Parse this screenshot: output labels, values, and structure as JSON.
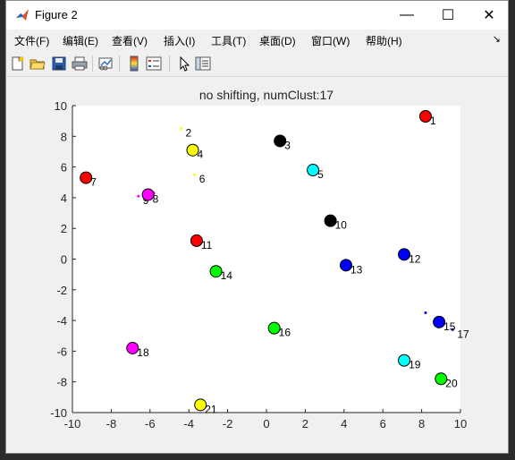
{
  "window": {
    "title": "Figure 2",
    "controls": {
      "minimize": "—",
      "maximize": "☐",
      "close": "✕"
    }
  },
  "menu": [
    "文件(F)",
    "编辑(E)",
    "查看(V)",
    "插入(I)",
    "工具(T)",
    "桌面(D)",
    "窗口(W)",
    "帮助(H)"
  ],
  "toolbar": [
    "new-figure",
    "open-file",
    "save",
    "print",
    "link-plot",
    "insert-colorbar",
    "insert-legend",
    "edit-plot",
    "property-inspector"
  ],
  "chart_data": {
    "type": "scatter",
    "title": "no shifting, numClust:17",
    "xlim": [
      -10,
      10
    ],
    "ylim": [
      -10,
      10
    ],
    "xticks": [
      -10,
      -8,
      -6,
      -4,
      -2,
      0,
      2,
      4,
      6,
      8,
      10
    ],
    "yticks": [
      -10,
      -8,
      -6,
      -4,
      -2,
      0,
      2,
      4,
      6,
      8,
      10
    ],
    "xtick_labels": [
      "-10",
      "-8",
      "-6",
      "-4",
      "-2",
      "0",
      "2",
      "4",
      "6",
      "8",
      "10"
    ],
    "ytick_labels": [
      "-10",
      "-8",
      "-6",
      "-4",
      "-2",
      "0",
      "2",
      "4",
      "6",
      "8",
      "10"
    ],
    "grid": false,
    "centers": [
      {
        "x": 8.2,
        "y": 9.3,
        "label": "1",
        "color": "#ff0000"
      },
      {
        "x": -3.8,
        "y": 7.1,
        "label": "4",
        "color": "#ffff00"
      },
      {
        "x": 0.7,
        "y": 7.7,
        "label": "3",
        "color": "#000000"
      },
      {
        "x": 2.4,
        "y": 5.8,
        "label": "5",
        "color": "#00ffff"
      },
      {
        "x": -9.3,
        "y": 5.3,
        "label": "7",
        "color": "#ff0000"
      },
      {
        "x": -6.1,
        "y": 4.2,
        "label": "8",
        "color": "#ff00ff"
      },
      {
        "x": 3.3,
        "y": 2.5,
        "label": "10",
        "color": "#000000"
      },
      {
        "x": 7.1,
        "y": 0.3,
        "label": "12",
        "color": "#0000ff"
      },
      {
        "x": -3.6,
        "y": 1.2,
        "label": "11",
        "color": "#ff0000"
      },
      {
        "x": 4.1,
        "y": -0.4,
        "label": "13",
        "color": "#0000ff"
      },
      {
        "x": -2.6,
        "y": -0.8,
        "label": "14",
        "color": "#00ff00"
      },
      {
        "x": 0.4,
        "y": -4.5,
        "label": "16",
        "color": "#00ff00"
      },
      {
        "x": 8.9,
        "y": -4.1,
        "label": "15",
        "color": "#0000ff"
      },
      {
        "x": -6.9,
        "y": -5.8,
        "label": "18",
        "color": "#ff00ff"
      },
      {
        "x": 7.1,
        "y": -6.6,
        "label": "19",
        "color": "#00ffff"
      },
      {
        "x": 9.0,
        "y": -7.8,
        "label": "20",
        "color": "#00ff00"
      },
      {
        "x": -3.4,
        "y": -9.5,
        "label": "21",
        "color": "#ffff00"
      }
    ],
    "points": [
      {
        "x": -4.4,
        "y": 8.5,
        "label": "2",
        "color": "#ffff00"
      },
      {
        "x": -3.7,
        "y": 5.5,
        "label": "6",
        "color": "#ffff00"
      },
      {
        "x": -6.6,
        "y": 4.1,
        "label": "9",
        "color": "#ff00ff"
      },
      {
        "x": -5.8,
        "y": 4.3,
        "label": "",
        "color": "#ff00ff"
      },
      {
        "x": 8.2,
        "y": -3.5,
        "label": "",
        "color": "#0000ff"
      },
      {
        "x": 9.6,
        "y": -4.6,
        "label": "17",
        "color": "#0000ff"
      }
    ]
  }
}
